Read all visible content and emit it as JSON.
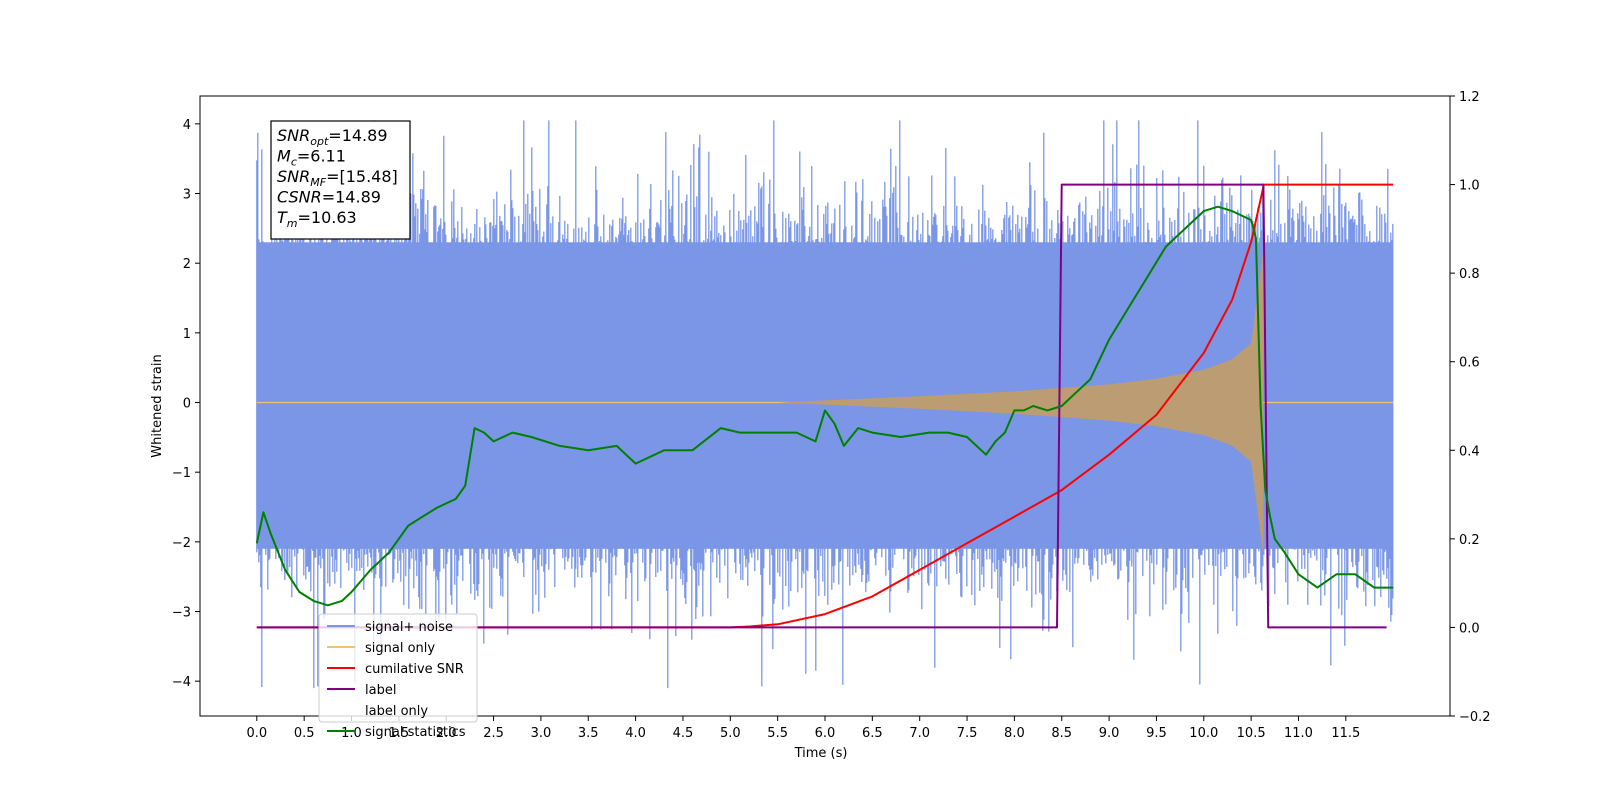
{
  "chart_data": {
    "type": "line",
    "xlabel": "Time (s)",
    "ylabel_left": "Whitened strain",
    "ylabel_right": "",
    "xlim": [
      -0.6,
      12.6
    ],
    "ylim_left": [
      -4.5,
      4.4
    ],
    "ylim_right": [
      -0.2,
      1.2
    ],
    "x_ticks": [
      "0.0",
      "0.5",
      "1.0",
      "1.5",
      "2.0",
      "2.5",
      "3.0",
      "3.5",
      "4.0",
      "4.5",
      "5.0",
      "5.5",
      "6.0",
      "6.5",
      "7.0",
      "7.5",
      "8.0",
      "8.5",
      "9.0",
      "9.5",
      "10.0",
      "10.5",
      "11.0",
      "11.5"
    ],
    "y_ticks_left": [
      "4",
      "3",
      "2",
      "1",
      "0",
      "−1",
      "−2",
      "−3",
      "−4"
    ],
    "y_ticks_right": [
      "1.2",
      "1.0",
      "0.8",
      "0.6",
      "0.4",
      "0.2",
      "0.0",
      "−0.2"
    ],
    "grid": false,
    "legend_position": "lower-left",
    "annotation": {
      "lines": [
        {
          "base": "SNR",
          "sub": "opt",
          "value": "=14.89"
        },
        {
          "base": "M",
          "sub": "c",
          "value": "=6.11"
        },
        {
          "base": "SNR",
          "sub": "MF",
          "value": "=[15.48]"
        },
        {
          "base": "CSNR",
          "sub": "",
          "value": "=14.89"
        },
        {
          "base": "T",
          "sub": "m",
          "value": "=10.63"
        }
      ]
    },
    "series": [
      {
        "name": "signal+ noise",
        "axis": "left",
        "color": "#7b96e6",
        "kind": "noise",
        "x_range": [
          0.0,
          12.0
        ],
        "upper_typical": 2.3,
        "lower_typical": -2.1,
        "upper_peak": 4.05,
        "lower_peak": -4.1
      },
      {
        "name": "signal only",
        "axis": "left",
        "color": "#f5c26b",
        "kind": "chirp-envelope",
        "x_start": 5.5,
        "x_end": 10.63,
        "envelope": [
          {
            "x": 5.5,
            "y": 0.0
          },
          {
            "x": 6.0,
            "y": 0.03
          },
          {
            "x": 7.0,
            "y": 0.09
          },
          {
            "x": 8.0,
            "y": 0.16
          },
          {
            "x": 9.0,
            "y": 0.26
          },
          {
            "x": 9.5,
            "y": 0.34
          },
          {
            "x": 10.0,
            "y": 0.47
          },
          {
            "x": 10.3,
            "y": 0.62
          },
          {
            "x": 10.5,
            "y": 0.85
          },
          {
            "x": 10.63,
            "y": 2.2
          }
        ]
      },
      {
        "name": "cumilative SNR",
        "axis": "right",
        "color": "#ff0000",
        "x": [
          0.0,
          5.0,
          5.2,
          5.5,
          6.0,
          6.5,
          7.0,
          7.5,
          8.0,
          8.5,
          9.0,
          9.5,
          10.0,
          10.3,
          10.5,
          10.63,
          10.63,
          12.0
        ],
        "y": [
          0.0,
          0.0,
          0.002,
          0.007,
          0.03,
          0.07,
          0.13,
          0.19,
          0.25,
          0.31,
          0.39,
          0.48,
          0.62,
          0.74,
          0.87,
          0.995,
          1.0,
          1.0
        ]
      },
      {
        "name": "label",
        "axis": "right",
        "color": "#800080",
        "x": [
          0.0,
          8.45,
          8.5,
          10.63,
          10.68,
          11.93
        ],
        "y": [
          0.0,
          0.0,
          1.0,
          1.0,
          0.0,
          0.0
        ]
      },
      {
        "name": "label only",
        "axis": "right",
        "color": "#d8d8d8",
        "legend_only": true
      },
      {
        "name": "signal statistics",
        "axis": "right",
        "color": "#008000",
        "x": [
          0.0,
          0.07,
          0.15,
          0.3,
          0.45,
          0.6,
          0.75,
          0.9,
          1.0,
          1.2,
          1.4,
          1.6,
          1.75,
          1.9,
          2.0,
          2.1,
          2.2,
          2.3,
          2.4,
          2.5,
          2.7,
          2.9,
          3.2,
          3.5,
          3.8,
          4.0,
          4.3,
          4.6,
          4.9,
          5.1,
          5.4,
          5.7,
          5.9,
          6.0,
          6.1,
          6.2,
          6.35,
          6.5,
          6.8,
          7.1,
          7.3,
          7.5,
          7.7,
          7.8,
          7.9,
          8.0,
          8.1,
          8.2,
          8.35,
          8.5,
          8.65,
          8.8,
          9.0,
          9.2,
          9.4,
          9.6,
          9.8,
          10.0,
          10.15,
          10.3,
          10.5,
          10.55,
          10.6,
          10.65,
          10.7,
          10.75,
          10.85,
          11.0,
          11.2,
          11.4,
          11.6,
          11.8,
          12.0
        ],
        "y": [
          0.19,
          0.26,
          0.21,
          0.13,
          0.08,
          0.06,
          0.05,
          0.06,
          0.08,
          0.13,
          0.17,
          0.23,
          0.25,
          0.27,
          0.28,
          0.29,
          0.32,
          0.45,
          0.44,
          0.42,
          0.44,
          0.43,
          0.41,
          0.4,
          0.41,
          0.37,
          0.4,
          0.4,
          0.45,
          0.44,
          0.44,
          0.44,
          0.42,
          0.49,
          0.46,
          0.41,
          0.45,
          0.44,
          0.43,
          0.44,
          0.44,
          0.43,
          0.39,
          0.42,
          0.44,
          0.49,
          0.49,
          0.5,
          0.49,
          0.5,
          0.53,
          0.56,
          0.65,
          0.72,
          0.79,
          0.86,
          0.9,
          0.94,
          0.95,
          0.94,
          0.92,
          0.88,
          0.5,
          0.31,
          0.25,
          0.2,
          0.17,
          0.12,
          0.09,
          0.12,
          0.12,
          0.09,
          0.09
        ]
      }
    ]
  }
}
